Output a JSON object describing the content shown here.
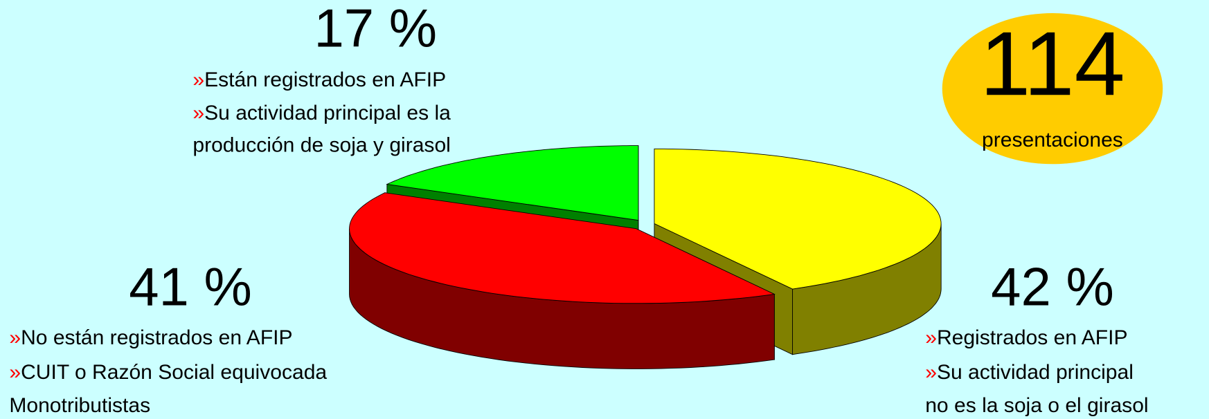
{
  "chart_data": {
    "type": "pie",
    "values": [
      17,
      41,
      42
    ],
    "value_labels": [
      "17 %",
      "41 %",
      "42 %"
    ],
    "colors": [
      "#00ff00",
      "#ff0000",
      "#ffff00"
    ],
    "side_colors": [
      "#008000",
      "#800000",
      "#808000"
    ],
    "notes": [
      [
        {
          "bullet": "»",
          "text": "Están registrados en AFIP"
        },
        {
          "bullet": "»",
          "text": "Su actividad principal es la"
        },
        {
          "text": "producción de soja y girasol"
        }
      ],
      [
        {
          "bullet": "»",
          "text": "No están registrados en AFIP"
        },
        {
          "bullet": "»",
          "text": "CUIT o Razón Social equivocada"
        },
        {
          "text": "Monotributistas"
        }
      ],
      [
        {
          "bullet": "»",
          "text": "Registrados en AFIP"
        },
        {
          "bullet": "»",
          "text": "Su actividad principal"
        },
        {
          "text": "no es la soja o el girasol"
        }
      ]
    ],
    "badge": {
      "count": 114,
      "label": "presentaciones",
      "color": "#ffcc00"
    }
  }
}
